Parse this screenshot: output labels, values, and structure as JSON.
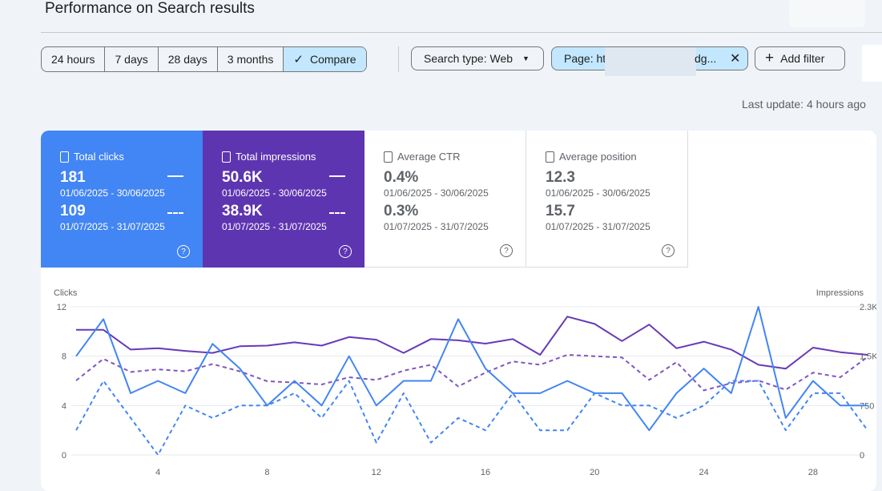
{
  "header": {
    "title": "Performance on Search results"
  },
  "date_range": {
    "options": [
      "24 hours",
      "7 days",
      "28 days",
      "3 months"
    ],
    "compare_label": "Compare",
    "compare_active": true
  },
  "filters": {
    "search_type": "Search type: Web",
    "page_prefix": "Page: ht",
    "page_suffix": "dg...",
    "add_filter": "Add filter"
  },
  "last_update": "Last update: 4 hours ago",
  "metrics": [
    {
      "label": "Total clicks",
      "value1": "181",
      "range1": "01/06/2025 - 30/06/2025",
      "value2": "109",
      "range2": "01/07/2025 - 31/07/2025",
      "selected": true,
      "color": "#4285f4"
    },
    {
      "label": "Total impressions",
      "value1": "50.6K",
      "range1": "01/06/2025 - 30/06/2025",
      "value2": "38.9K",
      "range2": "01/07/2025 - 31/07/2025",
      "selected": true,
      "color": "#5e35b1"
    },
    {
      "label": "Average CTR",
      "value1": "0.4%",
      "range1": "01/06/2025 - 30/06/2025",
      "value2": "0.3%",
      "range2": "01/07/2025 - 31/07/2025",
      "selected": false
    },
    {
      "label": "Average position",
      "value1": "12.3",
      "range1": "01/06/2025 - 30/06/2025",
      "value2": "15.7",
      "range2": "01/07/2025 - 31/07/2025",
      "selected": false
    }
  ],
  "chart_data": {
    "type": "line",
    "ylabel_left": "Clicks",
    "ylabel_right": "Impressions",
    "y_left_ticks": [
      "0",
      "4",
      "8",
      "12"
    ],
    "y_right_ticks": [
      "0",
      "750",
      "1.5K",
      "2.3K"
    ],
    "x_ticks": [
      "4",
      "8",
      "12",
      "16",
      "20",
      "24",
      "28"
    ],
    "ylim_left": [
      0,
      12
    ],
    "ylim_right": [
      0,
      2250
    ],
    "grid": true,
    "series": [
      {
        "axis": "right",
        "style": "solid",
        "color": "#673ab7",
        "values": [
          1900,
          1900,
          1600,
          1620,
          1580,
          1550,
          1650,
          1660,
          1710,
          1660,
          1790,
          1750,
          1550,
          1760,
          1740,
          1690,
          1760,
          1520,
          2100,
          1990,
          1730,
          1980,
          1620,
          1720,
          1600,
          1370,
          1310,
          1630,
          1560,
          1520
        ]
      },
      {
        "axis": "right",
        "style": "dashed",
        "color": "#7e57c2",
        "values": [
          1130,
          1460,
          1260,
          1300,
          1270,
          1380,
          1270,
          1120,
          1100,
          1070,
          1180,
          1140,
          1280,
          1370,
          1040,
          1250,
          1420,
          1370,
          1520,
          1500,
          1480,
          1140,
          1410,
          980,
          1090,
          1130,
          990,
          1250,
          1180,
          1490
        ]
      },
      {
        "axis": "left",
        "style": "solid",
        "color": "#4285f4",
        "values": [
          8,
          11,
          5,
          6,
          5,
          9,
          7,
          4,
          6,
          4,
          8,
          4,
          6,
          6,
          11,
          7,
          5,
          5,
          6,
          5,
          5,
          2,
          5,
          7,
          5,
          12,
          3,
          6,
          4,
          4
        ]
      },
      {
        "axis": "left",
        "style": "dashed",
        "color": "#4285f4",
        "values": [
          2,
          6,
          3,
          0,
          4,
          3,
          4,
          4,
          5,
          3,
          6,
          1,
          5,
          1,
          3,
          2,
          5,
          2,
          2,
          5,
          4,
          4,
          3,
          4,
          6,
          6,
          2,
          5,
          5,
          2
        ]
      }
    ]
  }
}
